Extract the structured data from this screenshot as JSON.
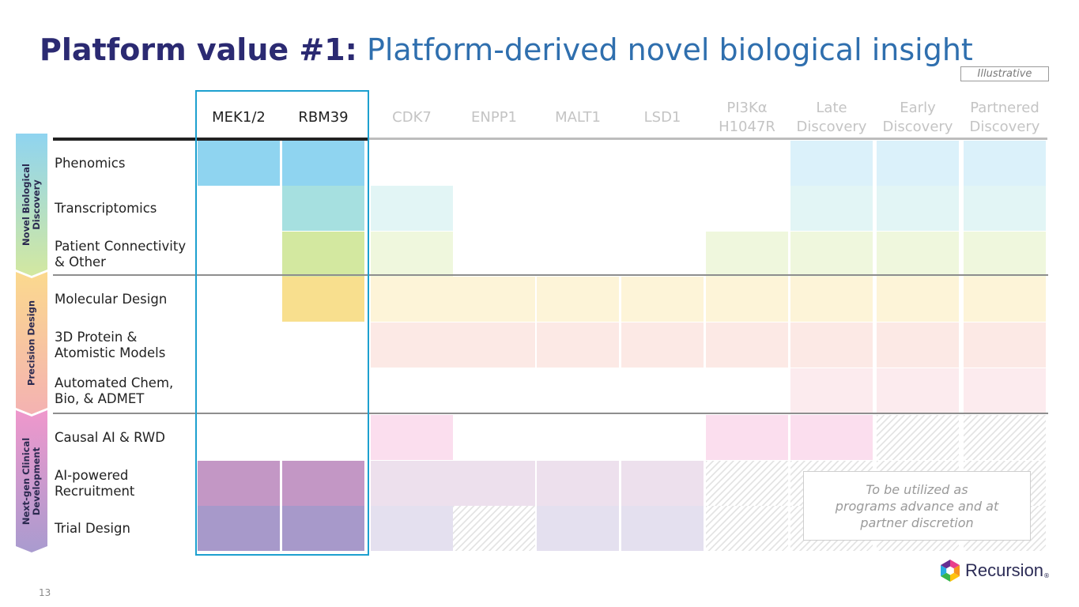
{
  "title": {
    "bold": "Platform value #1:",
    "rest": " Platform-derived novel biological insight"
  },
  "badge": "Illustrative",
  "columns": [
    "MEK1/2",
    "RBM39",
    "CDK7",
    "ENPP1",
    "MALT1",
    "LSD1",
    "PI3Kα\nH1047R",
    "Late\nDiscovery",
    "Early\nDiscovery",
    "Partnered\nDiscovery"
  ],
  "sections": [
    {
      "label": "Novel Biological\nDiscovery",
      "color_top": "#8fd4f0",
      "color_bottom": "#d3e8a0"
    },
    {
      "label": "Precision Design",
      "color_top": "#fbd98e",
      "color_bottom": "#f4b2b2"
    },
    {
      "label": "Next-gen Clinical\nDevelopment",
      "color_top": "#ef98cc",
      "color_bottom": "#a99bcf"
    }
  ],
  "rows": [
    "Phenomics",
    "Transcriptomics",
    "Patient Connectivity\n& Other",
    "Molecular Design",
    "3D Protein &\nAtomistic Models",
    "Automated Chem,\nBio, & ADMET",
    "Causal AI & RWD",
    "AI-powered\nRecruitment",
    "Trial Design"
  ],
  "row_colors": {
    "phenomics": "#8fd4f0",
    "transcriptomics": "#a6e0e0",
    "patient_connectivity": "#d3e8a0",
    "molecular_design": "#f8df8e",
    "protein_models": "#f8cbc0",
    "automated_chem": "#f6cad3",
    "causal_ai": "#f8c2e0",
    "recruitment": "#c397c5",
    "trial_design": "#a799ca"
  },
  "grid": [
    [
      "full",
      "full",
      "none",
      "none",
      "none",
      "none",
      "none",
      "faint",
      "faint",
      "faint"
    ],
    [
      "none",
      "full",
      "faint",
      "none",
      "none",
      "none",
      "none",
      "faint",
      "faint",
      "faint"
    ],
    [
      "none",
      "full",
      "faint",
      "none",
      "none",
      "none",
      "faint",
      "faint",
      "faint",
      "faint"
    ],
    [
      "none",
      "full",
      "faint",
      "faint",
      "faint",
      "faint",
      "faint",
      "faint",
      "faint",
      "faint"
    ],
    [
      "none",
      "none",
      "faint",
      "faint",
      "faint",
      "faint",
      "faint",
      "faint",
      "faint",
      "faint"
    ],
    [
      "none",
      "none",
      "none",
      "none",
      "none",
      "none",
      "none",
      "faint",
      "faint",
      "faint"
    ],
    [
      "none",
      "none",
      "faint",
      "none",
      "none",
      "none",
      "faint",
      "faint",
      "hatch",
      "hatch"
    ],
    [
      "full",
      "full",
      "faint",
      "faint",
      "faint",
      "faint",
      "hatch",
      "hatch",
      "hatch",
      "hatch"
    ],
    [
      "full",
      "full",
      "faint",
      "hatch",
      "faint",
      "faint",
      "hatch",
      "hatch",
      "hatch",
      "hatch"
    ]
  ],
  "note": "To be utilized as\nprograms advance and at\npartner discretion",
  "logo": {
    "text": "Recursion",
    "mark": "®"
  },
  "page_number": "13"
}
